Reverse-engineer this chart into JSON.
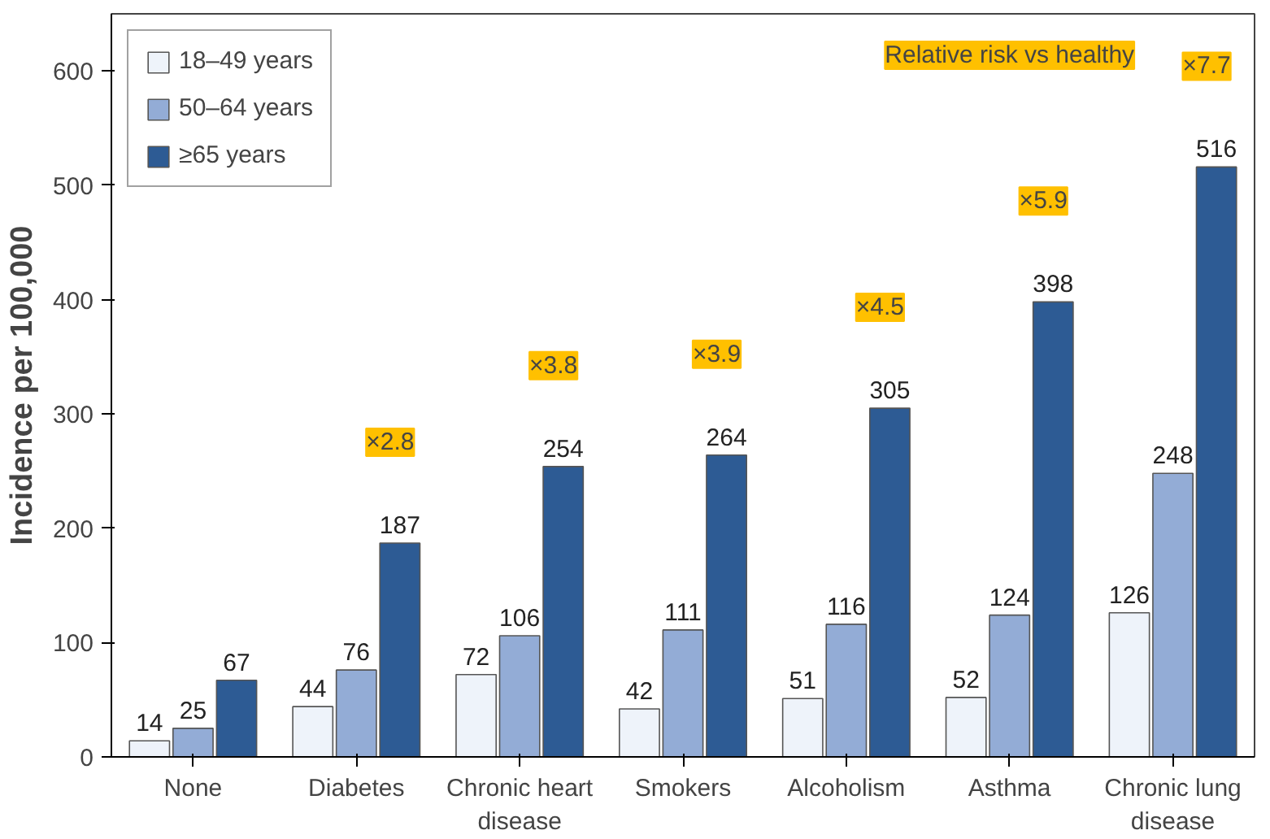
{
  "chart_data": {
    "type": "bar",
    "ylabel": "Incidence per 100,000",
    "categories": [
      "None",
      "Diabetes",
      "Chronic heart disease",
      "Smokers",
      "Alcoholism",
      "Asthma",
      "Chronic lung disease"
    ],
    "series": [
      {
        "name": "18–49 years",
        "color": "#eef3fa",
        "values": [
          14,
          44,
          72,
          42,
          51,
          52,
          126
        ]
      },
      {
        "name": "50–64 years",
        "color": "#93acd6",
        "values": [
          25,
          76,
          106,
          111,
          116,
          124,
          248
        ]
      },
      {
        "name": "≥65 years",
        "color": "#2d5b94",
        "values": [
          67,
          187,
          254,
          264,
          305,
          398,
          516
        ]
      }
    ],
    "ylim": [
      0,
      650
    ],
    "yticks": [
      0,
      100,
      200,
      300,
      400,
      500,
      600
    ],
    "grid": false,
    "legend": "top left",
    "data_labels": true,
    "annotations": [
      "Relative risk vs healthy",
      "×2.8",
      "×3.8",
      "×3.9",
      "×4.5",
      "×5.9",
      "×7.7"
    ]
  }
}
